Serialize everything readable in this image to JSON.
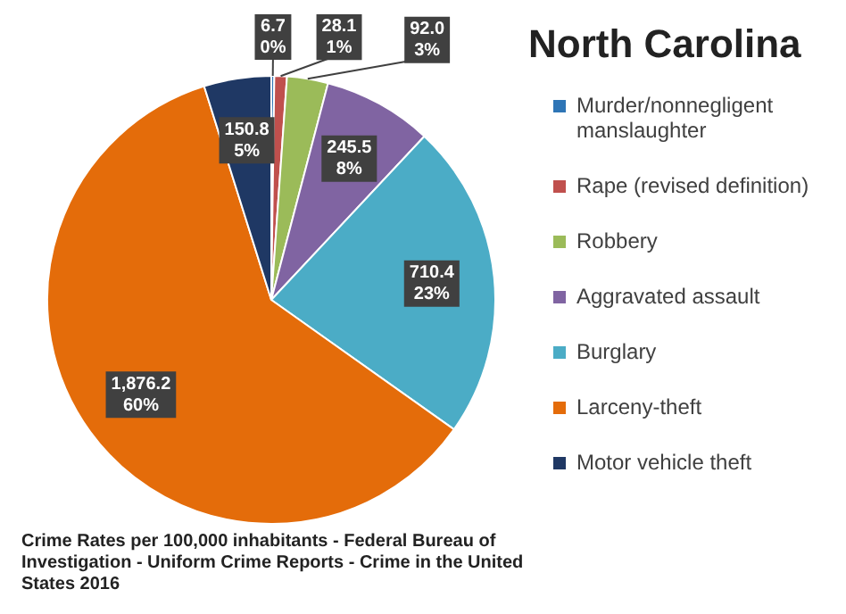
{
  "chart_data": {
    "type": "pie",
    "title": "North Carolina",
    "categories": [
      "Murder/nonnegligent manslaughter",
      "Rape (revised definition)",
      "Robbery",
      "Aggravated assault",
      "Burglary",
      "Larceny-theft",
      "Motor vehicle theft"
    ],
    "values": [
      6.7,
      28.1,
      92.0,
      245.5,
      710.4,
      1876.2,
      150.8
    ],
    "colors": [
      "#2e75b6",
      "#c0504d",
      "#9bbb59",
      "#8064a2",
      "#4bacc6",
      "#e46c0a",
      "#1f3864"
    ],
    "value_labels": [
      "6.7\n0%",
      "28.1\n1%",
      "92.0\n3%",
      "245.5\n8%",
      "710.4\n23%",
      "1,876.2\n60%",
      "150.8\n5%"
    ],
    "legend": "right",
    "annotations": [
      "Crime Rates per 100,000 inhabitants - Federal Bureau of Investigation - Uniform Crime Reports - Crime in the United States 2016"
    ]
  }
}
